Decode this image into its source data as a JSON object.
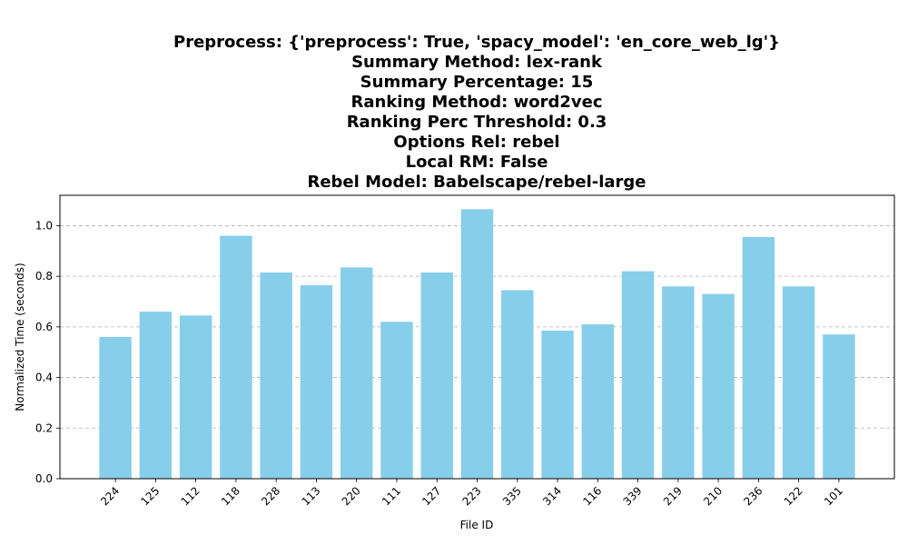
{
  "chart_data": {
    "type": "bar",
    "title_lines": [
      "Preprocess: {'preprocess': True, 'spacy_model': 'en_core_web_lg'}",
      "Summary Method: lex-rank",
      "Summary Percentage: 15",
      "Ranking Method: word2vec",
      "Ranking Perc Threshold: 0.3",
      "Options Rel: rebel",
      "Local RM: False",
      "Rebel Model: Babelscape/rebel-large"
    ],
    "xlabel": "File ID",
    "ylabel": "Normalized Time (seconds)",
    "categories": [
      "224",
      "125",
      "112",
      "118",
      "228",
      "113",
      "220",
      "111",
      "127",
      "223",
      "335",
      "314",
      "116",
      "339",
      "219",
      "210",
      "236",
      "122",
      "101"
    ],
    "values": [
      0.56,
      0.66,
      0.645,
      0.96,
      0.815,
      0.765,
      0.835,
      0.62,
      0.815,
      1.065,
      0.745,
      0.585,
      0.61,
      0.82,
      0.76,
      0.73,
      0.955,
      0.76,
      0.57
    ],
    "ylim": [
      0,
      1.12
    ],
    "yticks": [
      "0.0",
      "0.2",
      "0.4",
      "0.6",
      "0.8",
      "1.0"
    ],
    "grid": "y-dashed",
    "bar_color": "#87CEEB",
    "grid_color": "#b0b0b0"
  }
}
